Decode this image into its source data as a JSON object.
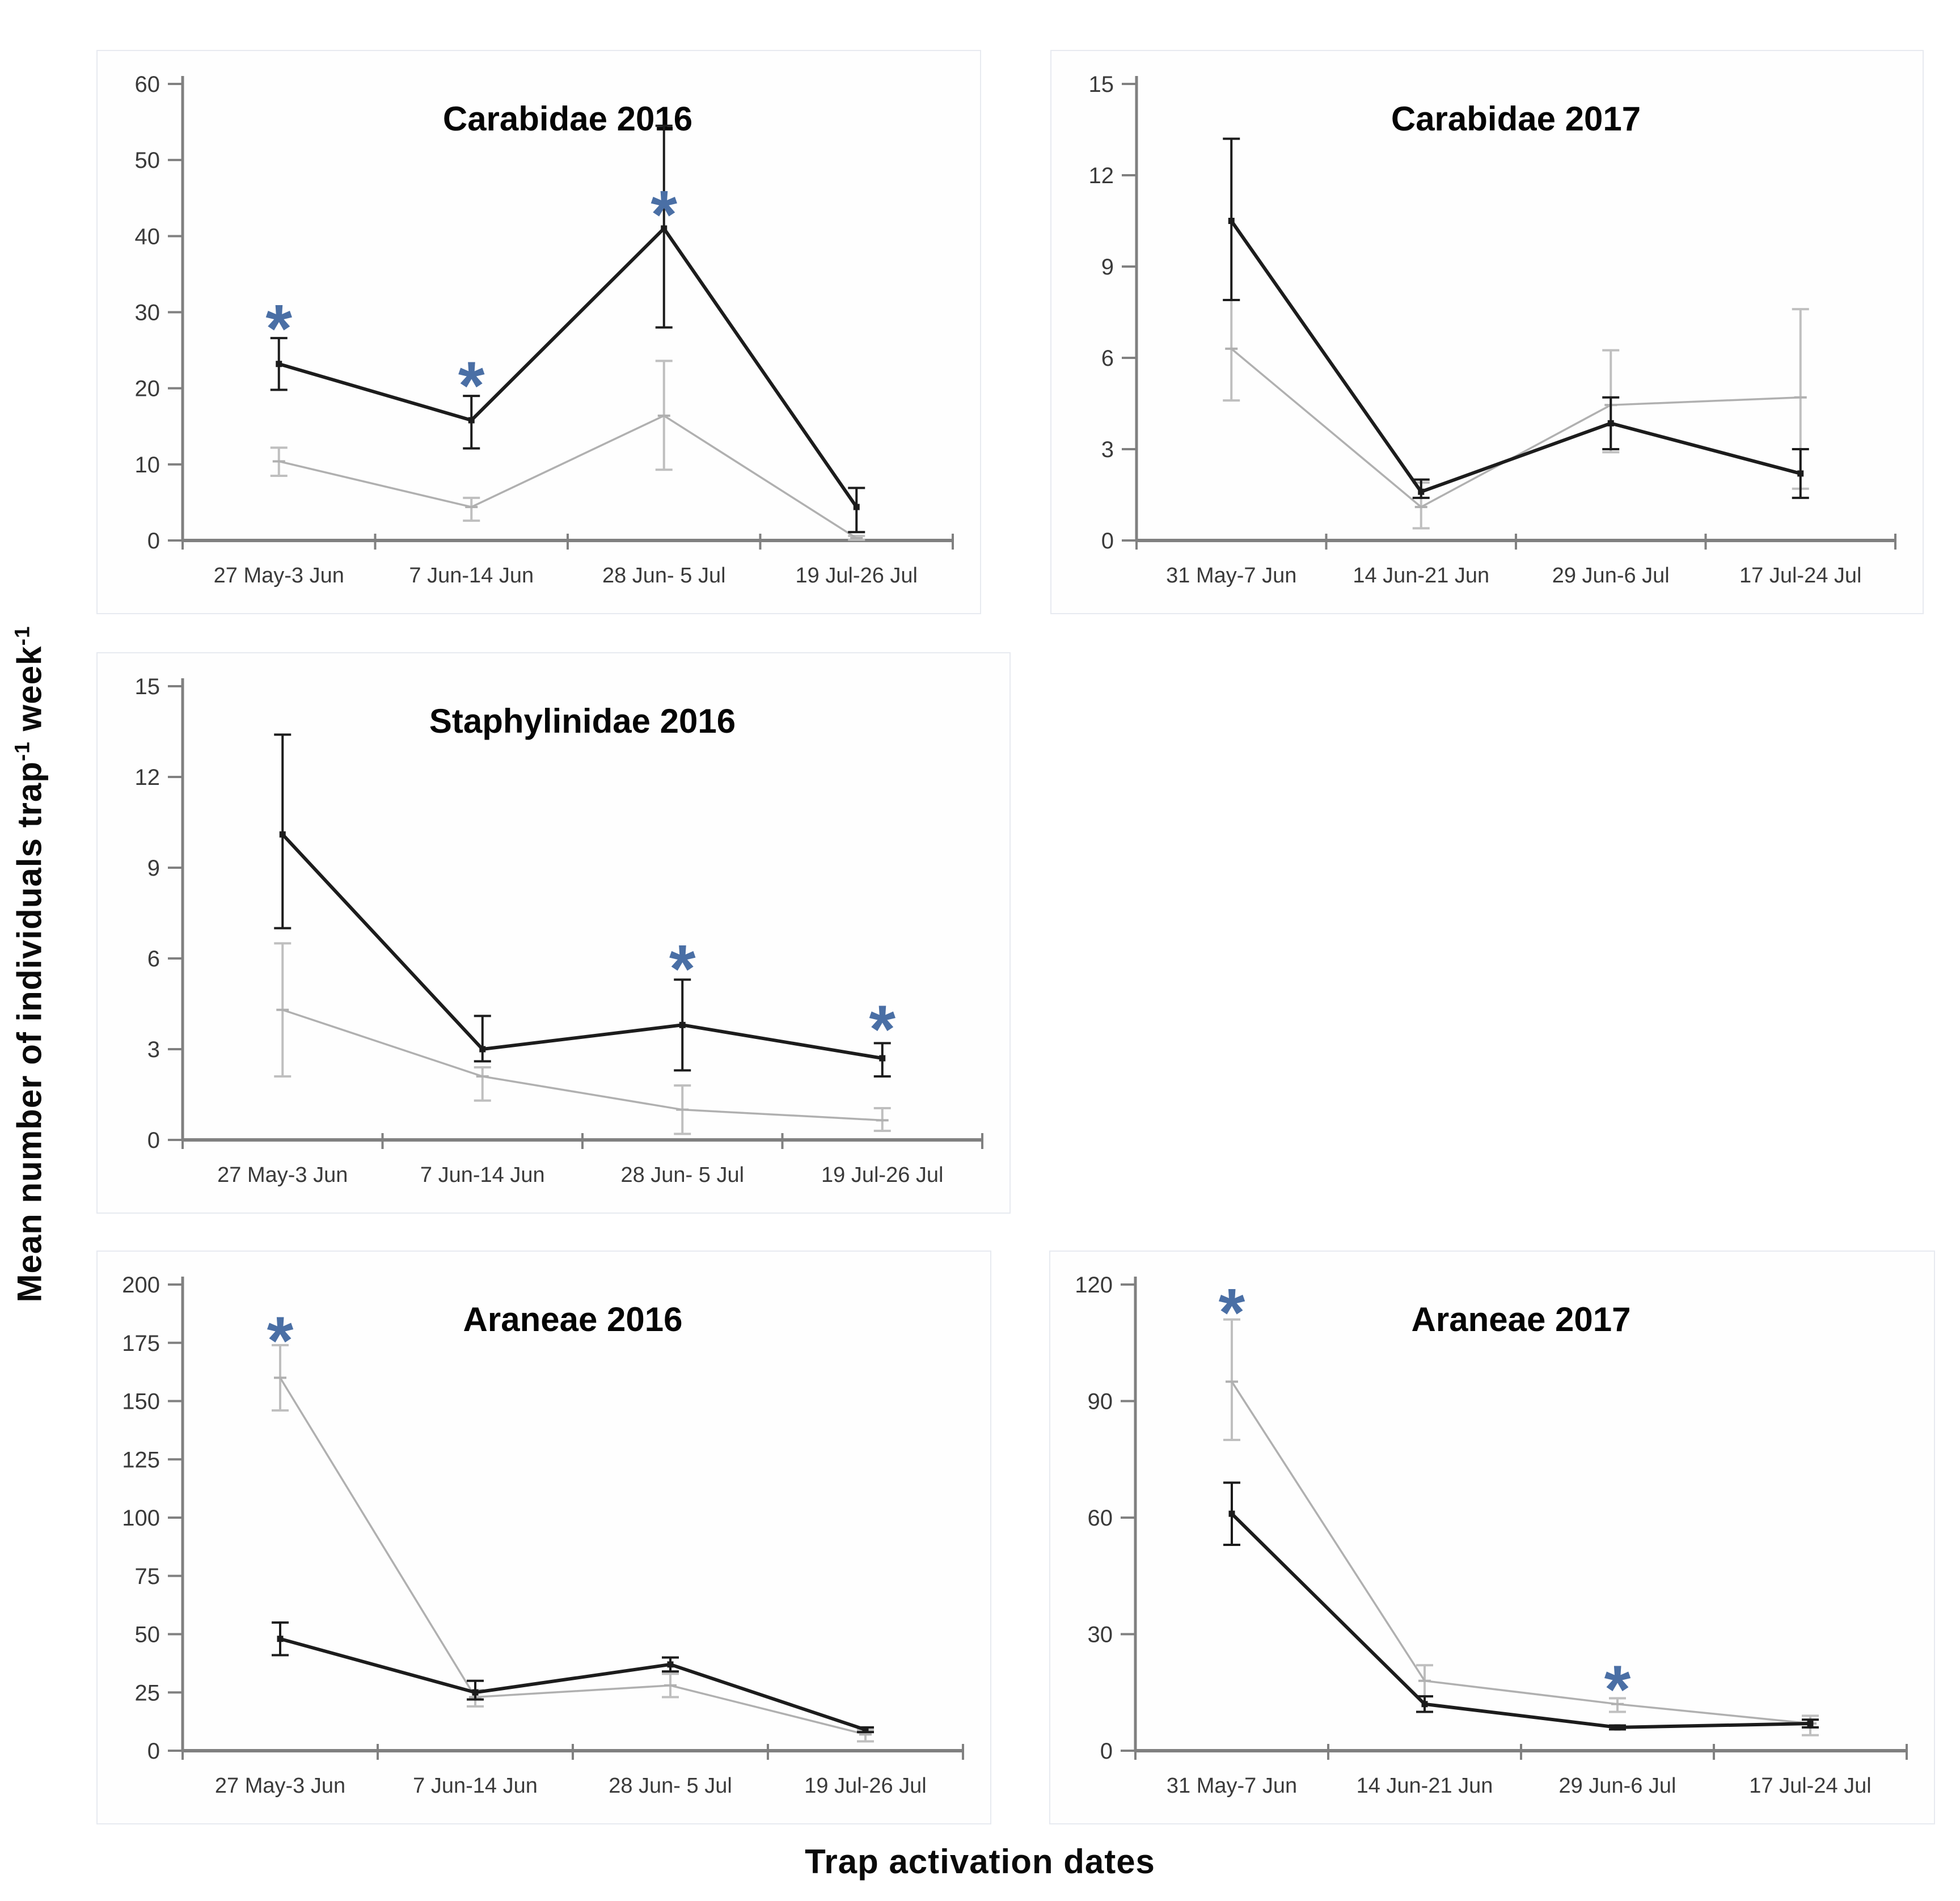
{
  "figure": {
    "xlabel": "Trap activation dates",
    "ylabel": {
      "prefix": "Mean number of individuals trap",
      "sup1": "-1",
      "mid": " week",
      "sup2": "-1"
    },
    "asterisk_symbol": "*",
    "colors": {
      "series_black": "#1c1c1c",
      "series_gray": "#b0b0b0",
      "gray_error": "#bfbfbf",
      "axis": "#808080",
      "tick_label": "#3a3a3a",
      "title": "#050505",
      "asterisk": "#4a6fa5",
      "panel_border": "#e7eaf0"
    }
  },
  "chart_data": [
    {
      "id": "carabidae-2016",
      "type": "line",
      "title": "Carabidae 2016",
      "categories": [
        "27 May-3 Jun",
        "7 Jun-14 Jun",
        "28 Jun- 5 Jul",
        "19 Jul-26 Jul"
      ],
      "ylim": [
        0,
        60
      ],
      "yticks": [
        0,
        10,
        20,
        30,
        40,
        50,
        60
      ],
      "grid": false,
      "legend": "none",
      "series": [
        {
          "name": "gray",
          "values": [
            10.4,
            4.4,
            16.4,
            0.3
          ],
          "err_lo": [
            8.5,
            2.6,
            9.3,
            0.1
          ],
          "err_hi": [
            12.2,
            5.6,
            23.6,
            0.6
          ]
        },
        {
          "name": "black",
          "values": [
            23.2,
            15.8,
            41.0,
            4.4
          ],
          "err_lo": [
            19.8,
            12.1,
            28.0,
            1.1
          ],
          "err_hi": [
            26.6,
            19.0,
            54.5,
            6.9
          ]
        }
      ],
      "asterisks": [
        {
          "point": 0,
          "y": 30.0
        },
        {
          "point": 1,
          "y": 22.5
        },
        {
          "point": 2,
          "y": 45.0
        }
      ]
    },
    {
      "id": "carabidae-2017",
      "type": "line",
      "title": "Carabidae 2017",
      "categories": [
        "31 May-7 Jun",
        "14 Jun-21 Jun",
        "29 Jun-6 Jul",
        "17 Jul-24 Jul"
      ],
      "ylim": [
        0,
        15
      ],
      "yticks": [
        0,
        3,
        6,
        9,
        12,
        15
      ],
      "grid": false,
      "legend": "none",
      "series": [
        {
          "name": "gray",
          "values": [
            6.3,
            1.1,
            4.45,
            4.7
          ],
          "err_lo": [
            4.6,
            0.4,
            2.9,
            1.7
          ],
          "err_hi": [
            7.9,
            1.9,
            6.25,
            7.6
          ]
        },
        {
          "name": "black",
          "values": [
            10.5,
            1.6,
            3.85,
            2.2
          ],
          "err_lo": [
            7.9,
            1.4,
            3.0,
            1.4
          ],
          "err_hi": [
            13.2,
            2.0,
            4.7,
            3.0
          ]
        }
      ],
      "asterisks": []
    },
    {
      "id": "staphylinidae-2016",
      "type": "line",
      "title": "Staphylinidae 2016",
      "categories": [
        "27 May-3 Jun",
        "7 Jun-14 Jun",
        "28 Jun- 5 Jul",
        "19 Jul-26 Jul"
      ],
      "ylim": [
        0,
        15
      ],
      "yticks": [
        0,
        3,
        6,
        9,
        12,
        15
      ],
      "grid": false,
      "legend": "none",
      "series": [
        {
          "name": "gray",
          "values": [
            4.3,
            2.1,
            1.0,
            0.65
          ],
          "err_lo": [
            2.1,
            1.3,
            0.2,
            0.3
          ],
          "err_hi": [
            6.5,
            2.4,
            1.8,
            1.05
          ]
        },
        {
          "name": "black",
          "values": [
            10.1,
            3.0,
            3.8,
            2.7
          ],
          "err_lo": [
            7.0,
            2.6,
            2.3,
            2.1
          ],
          "err_hi": [
            13.4,
            4.1,
            5.3,
            3.2
          ]
        }
      ],
      "asterisks": [
        {
          "point": 2,
          "y": 6.2
        },
        {
          "point": 3,
          "y": 4.2
        }
      ]
    },
    {
      "id": "araneae-2016",
      "type": "line",
      "title": "Araneae 2016",
      "categories": [
        "27 May-3 Jun",
        "7 Jun-14 Jun",
        "28 Jun- 5 Jul",
        "19 Jul-26 Jul"
      ],
      "ylim": [
        0,
        200
      ],
      "yticks": [
        0,
        25,
        50,
        75,
        100,
        125,
        150,
        175,
        200
      ],
      "grid": false,
      "legend": "none",
      "series": [
        {
          "name": "gray",
          "values": [
            160,
            23,
            28,
            7
          ],
          "err_lo": [
            146,
            19,
            23,
            4
          ],
          "err_hi": [
            174,
            26,
            33,
            9
          ]
        },
        {
          "name": "black",
          "values": [
            48,
            25,
            37,
            9
          ],
          "err_lo": [
            41,
            22,
            34,
            8
          ],
          "err_hi": [
            55,
            30,
            40,
            10
          ]
        }
      ],
      "asterisks": [
        {
          "point": 0,
          "y": 183
        }
      ]
    },
    {
      "id": "araneae-2017",
      "type": "line",
      "title": "Araneae 2017",
      "categories": [
        "31 May-7 Jun",
        "14 Jun-21 Jun",
        "29 Jun-6 Jul",
        "17 Jul-24 Jul"
      ],
      "ylim": [
        0,
        120
      ],
      "yticks": [
        0,
        30,
        60,
        90,
        120
      ],
      "grid": false,
      "legend": "none",
      "series": [
        {
          "name": "gray",
          "values": [
            95,
            18,
            12,
            7
          ],
          "err_lo": [
            80,
            14,
            10,
            4
          ],
          "err_hi": [
            111,
            22,
            13.5,
            9
          ]
        },
        {
          "name": "black",
          "values": [
            61,
            12,
            6,
            7
          ],
          "err_lo": [
            53,
            10,
            5.5,
            6
          ],
          "err_hi": [
            69,
            14,
            6.5,
            8
          ]
        }
      ],
      "asterisks": [
        {
          "point": 0,
          "y": 117
        },
        {
          "point": 2,
          "y": 20
        }
      ]
    }
  ]
}
